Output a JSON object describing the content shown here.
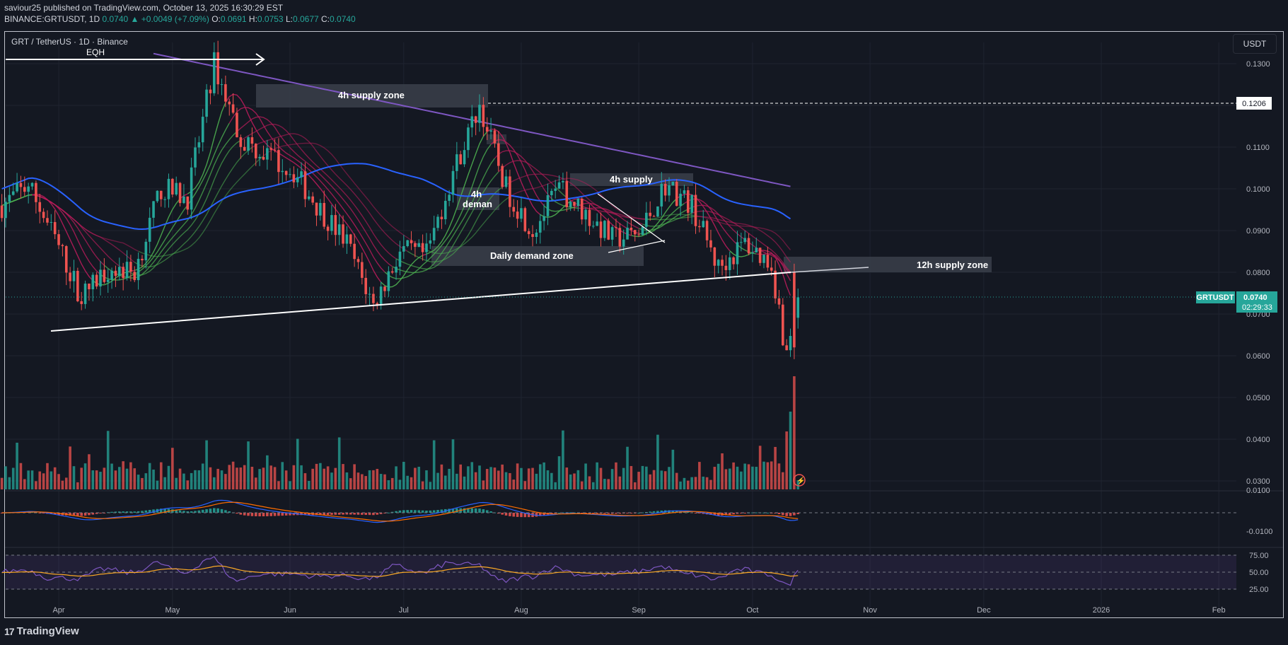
{
  "header": {
    "line1": "saviour25 published on TradingView.com, October 13, 2025 16:30:29 EST",
    "symbol": "BINANCE:GRTUSDT, 1D",
    "last": "0.0740",
    "change": "+0.0049 (+7.09%)",
    "o_label": "O:",
    "o": "0.0691",
    "h_label": "H:",
    "h": "0.0753",
    "l_label": "L:",
    "l": "0.0677",
    "c_label": "C:",
    "c": "0.0740"
  },
  "chart_title": "GRT / TetherUS · 1D · Binance",
  "currency_button": "USDT",
  "price_tag": {
    "symbol": "GRTUSDT",
    "price": "0.0740",
    "countdown": "02:29:33"
  },
  "level_tag": "0.1206",
  "annotations": {
    "eqh": "EQH",
    "supply_4h_zone": "4h supply zone",
    "supply_4h": "4h supply",
    "demand_4h_line1": "4h",
    "demand_4h_line2": "deman",
    "daily_demand": "Daily demand zone",
    "supply_12h": "12h supply zone"
  },
  "footer_brand": "TradingView",
  "colors": {
    "up": "#26a69a",
    "down": "#ef5350",
    "ma100": "#2962ff",
    "ma200": "#7e57c2",
    "ribbon_up": "#4caf50",
    "ribbon_down": "#b71c5a",
    "rsi": "#7e57c2",
    "rsi_ma": "#f9a825"
  },
  "chart_data": {
    "type": "candlestick",
    "title": "GRT / TetherUS · 1D · Binance",
    "x_tick_labels": [
      "Apr",
      "May",
      "Jun",
      "Jul",
      "Aug",
      "Sep",
      "Oct",
      "Nov",
      "Dec",
      "2026",
      "Feb"
    ],
    "price_axis": {
      "labels": [
        "0.1300",
        "0.1200",
        "0.1100",
        "0.1000",
        "0.0900",
        "0.0800",
        "0.0700",
        "0.0600",
        "0.0500",
        "0.0400",
        "0.0300"
      ],
      "ylim": [
        0.028,
        0.138
      ]
    },
    "key_levels": {
      "eqh": 0.131,
      "level_0_1206": 0.1206,
      "current": 0.074
    },
    "price_path": [
      [
        "2025-03-17",
        0.096
      ],
      [
        "2025-03-24",
        0.101
      ],
      [
        "2025-03-31",
        0.088
      ],
      [
        "2025-04-07",
        0.074
      ],
      [
        "2025-04-14",
        0.081
      ],
      [
        "2025-04-21",
        0.08
      ],
      [
        "2025-04-28",
        0.1
      ],
      [
        "2025-05-05",
        0.098
      ],
      [
        "2025-05-12",
        0.13
      ],
      [
        "2025-05-19",
        0.112
      ],
      [
        "2025-05-26",
        0.108
      ],
      [
        "2025-06-02",
        0.104
      ],
      [
        "2025-06-09",
        0.095
      ],
      [
        "2025-06-16",
        0.087
      ],
      [
        "2025-06-23",
        0.072
      ],
      [
        "2025-06-30",
        0.085
      ],
      [
        "2025-07-07",
        0.084
      ],
      [
        "2025-07-14",
        0.104
      ],
      [
        "2025-07-21",
        0.12
      ],
      [
        "2025-07-28",
        0.1
      ],
      [
        "2025-08-04",
        0.09
      ],
      [
        "2025-08-11",
        0.1
      ],
      [
        "2025-08-18",
        0.094
      ],
      [
        "2025-08-25",
        0.088
      ],
      [
        "2025-09-01",
        0.089
      ],
      [
        "2025-09-08",
        0.101
      ],
      [
        "2025-09-15",
        0.096
      ],
      [
        "2025-09-22",
        0.081
      ],
      [
        "2025-09-29",
        0.087
      ],
      [
        "2025-10-06",
        0.082
      ],
      [
        "2025-10-10",
        0.06
      ],
      [
        "2025-10-13",
        0.074
      ]
    ],
    "macd_axis": {
      "labels": [
        "0.0100",
        "-0.0100"
      ]
    },
    "rsi_axis": {
      "labels": [
        "75.00",
        "50.00",
        "25.00"
      ],
      "ylim": [
        20,
        80
      ]
    }
  }
}
